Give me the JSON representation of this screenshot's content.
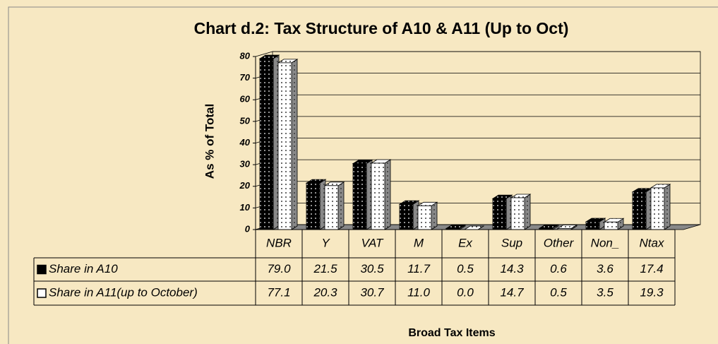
{
  "chart_data": {
    "type": "bar3d",
    "title": "Chart d.2: Tax Structure of A10 & A11 (Up to Oct)",
    "ylabel": "As % of Total",
    "xlabel": "Broad Tax Items",
    "categories": [
      "NBR",
      "Y",
      "VAT",
      "M",
      "Ex",
      "Sup",
      "Other",
      "Non_",
      "Ntax"
    ],
    "series": [
      {
        "name": "Share in A10",
        "color": "#000000",
        "values": [
          79.0,
          21.5,
          30.5,
          11.7,
          0.5,
          14.3,
          0.6,
          3.6,
          17.4
        ],
        "value_labels": [
          "79.0",
          "21.5",
          "30.5",
          "11.7",
          "0.5",
          "14.3",
          "0.6",
          "3.6",
          "17.4"
        ]
      },
      {
        "name": "Share in A11(up to October)",
        "color": "#ffffff",
        "values": [
          77.1,
          20.3,
          30.7,
          11.0,
          0.0,
          14.7,
          0.5,
          3.5,
          19.3
        ],
        "value_labels": [
          "77.1",
          "20.3",
          "30.7",
          "11.0",
          "0.0",
          "14.7",
          "0.5",
          "3.5",
          "19.3"
        ]
      }
    ],
    "ylim": [
      0,
      80
    ],
    "yticks": [
      0,
      10,
      20,
      30,
      40,
      50,
      60,
      70,
      80
    ],
    "grid": true
  }
}
